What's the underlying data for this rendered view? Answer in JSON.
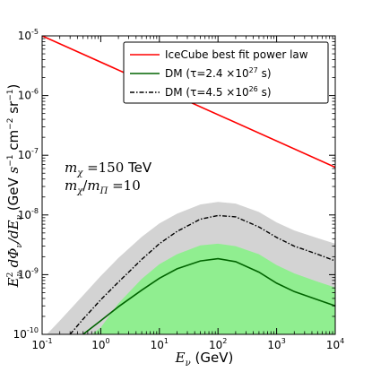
{
  "chart_data": {
    "type": "line",
    "xscale": "log",
    "yscale": "log",
    "xlim": [
      0.1,
      10000
    ],
    "ylim": [
      1e-10,
      1e-05
    ],
    "xlabel": "E_ν (GeV)",
    "ylabel": "E_ν² dΦ_ν/dE_ν (GeV s⁻¹ cm⁻² sr⁻¹)",
    "x_ticks": [
      {
        "value": 0.1,
        "base": "10",
        "exp": "-1"
      },
      {
        "value": 1,
        "base": "10",
        "exp": "0"
      },
      {
        "value": 10,
        "base": "10",
        "exp": "1"
      },
      {
        "value": 100,
        "base": "10",
        "exp": "2"
      },
      {
        "value": 1000,
        "base": "10",
        "exp": "3"
      },
      {
        "value": 10000,
        "base": "10",
        "exp": "4"
      }
    ],
    "y_ticks": [
      {
        "value": 1e-10,
        "base": "10",
        "exp": "-10"
      },
      {
        "value": 1e-09,
        "base": "10",
        "exp": "-9"
      },
      {
        "value": 1e-08,
        "base": "10",
        "exp": "-8"
      },
      {
        "value": 1e-07,
        "base": "10",
        "exp": "-7"
      },
      {
        "value": 1e-06,
        "base": "10",
        "exp": "-6"
      },
      {
        "value": 1e-05,
        "base": "10",
        "exp": "-5"
      }
    ],
    "series": [
      {
        "name": "IceCube best fit power law",
        "style": "solid",
        "color": "#ff0000",
        "x": [
          0.1,
          10000
        ],
        "y": [
          1e-05,
          6.3e-08
        ]
      },
      {
        "name": "DM (τ=2.4 ×10²⁷ s)",
        "style": "solid",
        "color": "#006400",
        "x": [
          0.5,
          1,
          2,
          5,
          10,
          20,
          50,
          100,
          200,
          500,
          1000,
          2000,
          5000,
          10000
        ],
        "y": [
          1e-10,
          1.7e-10,
          2.9e-10,
          5.5e-10,
          8.7e-10,
          1.25e-09,
          1.7e-09,
          1.85e-09,
          1.65e-09,
          1.1e-09,
          7.2e-10,
          5.2e-10,
          3.8e-10,
          3e-10
        ]
      },
      {
        "name": "DM (τ=4.5 ×10²⁶ s)",
        "style": "dashdot",
        "color": "#000000",
        "x": [
          0.3,
          0.5,
          1,
          2,
          5,
          10,
          20,
          50,
          100,
          200,
          500,
          1000,
          2000,
          5000,
          10000
        ],
        "y": [
          1e-10,
          1.8e-10,
          3.8e-10,
          7.5e-10,
          1.8e-09,
          3.3e-09,
          5.3e-09,
          8.5e-09,
          9.8e-09,
          9.3e-09,
          6.3e-09,
          4.2e-09,
          3e-09,
          2.2e-09,
          1.7e-09
        ]
      }
    ],
    "bands": [
      {
        "color": "#d3d3d3",
        "x": [
          0.12,
          0.2,
          0.5,
          1,
          2,
          5,
          10,
          20,
          50,
          100,
          200,
          500,
          1000,
          2000,
          5000,
          10000
        ],
        "y_upper": [
          1e-10,
          1.7e-10,
          4.5e-10,
          9.5e-10,
          1.9e-09,
          4.3e-09,
          7.2e-09,
          1.05e-08,
          1.5e-08,
          1.65e-08,
          1.55e-08,
          1.12e-08,
          7.5e-09,
          5.5e-09,
          4.1e-09,
          3.3e-09
        ],
        "y_lower": [
          1e-10,
          1e-10,
          1e-10,
          1e-10,
          1e-10,
          1e-10,
          1e-10,
          1e-10,
          1e-10,
          1e-10,
          1e-10,
          1e-10,
          1e-10,
          1e-10,
          1e-10,
          1e-10
        ]
      },
      {
        "color": "#90ee90",
        "x": [
          0.7,
          1,
          2,
          5,
          10,
          20,
          50,
          100,
          200,
          500,
          1000,
          2000,
          5000,
          10000
        ],
        "y_upper": [
          1e-10,
          1.3e-10,
          3.3e-10,
          8.5e-10,
          1.5e-09,
          2.2e-09,
          3.1e-09,
          3.3e-09,
          3e-09,
          2.2e-09,
          1.45e-09,
          1.05e-09,
          7.6e-10,
          6.1e-10
        ],
        "y_lower": [
          1e-10,
          1e-10,
          1e-10,
          1e-10,
          1e-10,
          1e-10,
          1e-10,
          1e-10,
          1e-10,
          1e-10,
          1e-10,
          1e-10,
          1e-10,
          1e-10
        ]
      }
    ],
    "legend": {
      "placement": "top-right",
      "entries": [
        {
          "label_main": "IceCube best fit power law",
          "color": "#ff0000",
          "style": "solid"
        },
        {
          "label_main": "DM (τ=2.4 ×10",
          "label_sup": "27",
          "label_tail": " s)",
          "color": "#006400",
          "style": "solid"
        },
        {
          "label_main": "DM (τ=4.5 ×10",
          "label_sup": "26",
          "label_tail": " s)",
          "color": "#000000",
          "style": "dashdot"
        }
      ]
    },
    "annotations": [
      {
        "text": "mχ =150 TeV"
      },
      {
        "text": "mχ/mΠ =10"
      }
    ]
  }
}
